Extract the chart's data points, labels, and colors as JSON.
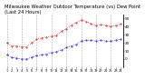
{
  "title": "Milwaukee Weather Outdoor Temperature (vs) Dew Point (Last 24 Hours)",
  "title_fontsize": 3.8,
  "background_color": "#ffffff",
  "grid_color": "#aaaaaa",
  "temp_color": "#cc0000",
  "dew_color": "#0000cc",
  "temp_data": [
    20,
    16,
    16,
    15,
    15,
    20,
    24,
    26,
    27,
    28,
    29,
    34,
    37,
    41,
    45,
    48,
    46,
    43,
    41,
    42,
    41,
    40,
    41,
    43
  ],
  "dew_data": [
    5,
    2,
    1,
    0,
    0,
    2,
    4,
    5,
    6,
    8,
    9,
    11,
    14,
    16,
    18,
    22,
    23,
    23,
    22,
    23,
    22,
    22,
    23,
    24
  ],
  "ylim": [
    -10,
    55
  ],
  "yticks": [
    0,
    10,
    20,
    30,
    40,
    50
  ],
  "ytick_labels": [
    "0",
    "10",
    "20",
    "30",
    "40",
    "50"
  ],
  "ytick_fontsize": 3.0,
  "xtick_fontsize": 2.5,
  "n_points": 24,
  "grid_interval": 3,
  "figsize": [
    1.6,
    0.87
  ],
  "dpi": 100
}
